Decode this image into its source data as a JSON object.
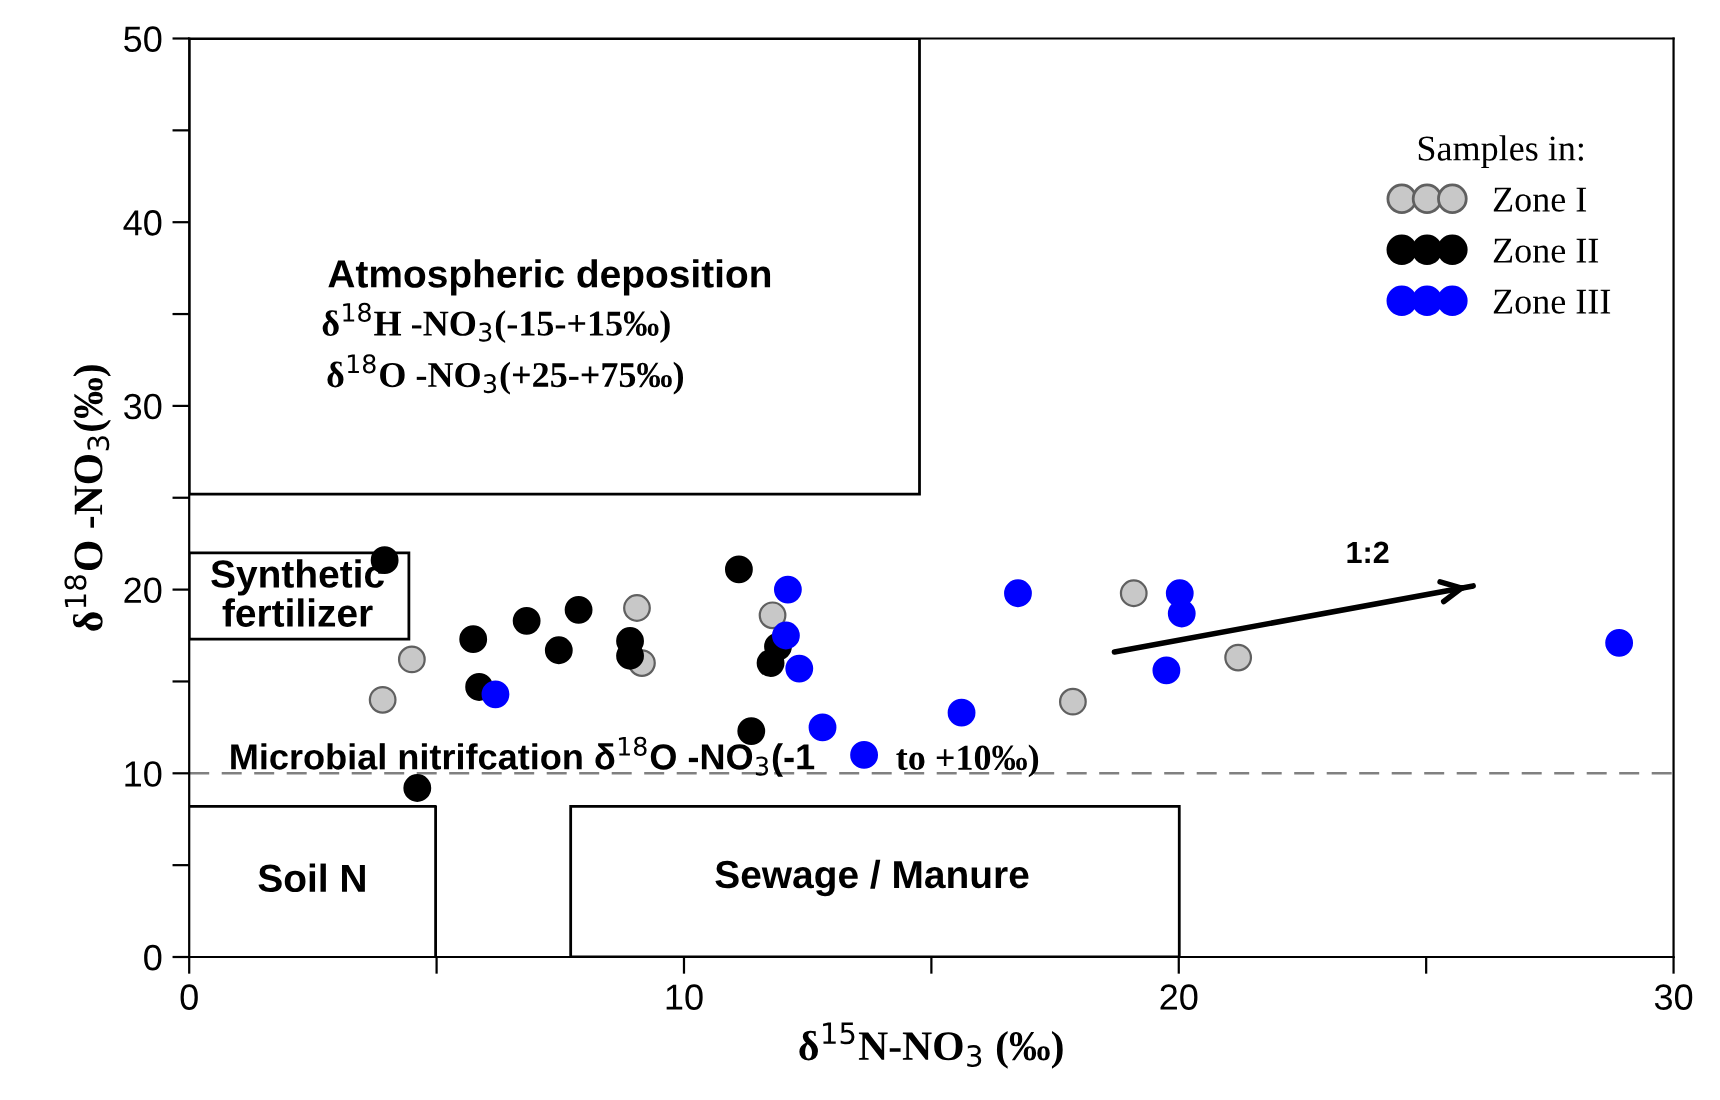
{
  "chart_data": {
    "type": "scatter",
    "xlabel": "δ$^{15}$N-NO$_{3}$ (‰)",
    "ylabel": "δ$^{18}$O -NO$_{3}$(‰)",
    "legend_title": "Samples in:",
    "legend": "top right",
    "marker": "circle",
    "xlim": [
      0,
      30
    ],
    "ylim": [
      0,
      50
    ],
    "xticks": [
      0,
      {
        "value": 5,
        "label": null
      },
      10,
      {
        "value": 15,
        "label": null
      },
      20,
      {
        "value": 25,
        "label": null
      },
      30
    ],
    "yticks": [
      0,
      {
        "value": 5,
        "label": null
      },
      10,
      {
        "value": 15,
        "label": null
      },
      20,
      {
        "value": 25,
        "label": null
      },
      30,
      {
        "value": 35,
        "label": null
      },
      40,
      {
        "value": 45,
        "label": null
      },
      50
    ],
    "series": [
      {
        "name": "Zone I",
        "color": "#c8c8c8",
        "x": [
          3.91,
          4.5,
          9.05,
          9.15,
          11.79,
          17.86,
          19.09,
          21.2
        ],
        "values": [
          14.0,
          16.2,
          19.0,
          16.0,
          18.6,
          13.9,
          19.8,
          16.3
        ]
      },
      {
        "name": "Zone II",
        "color": "#000000",
        "x": [
          3.95,
          5.74,
          5.86,
          6.82,
          7.87,
          7.47,
          8.91,
          8.91,
          11.11,
          11.36,
          4.61,
          11.9,
          11.75
        ],
        "values": [
          21.6,
          17.3,
          14.7,
          18.3,
          18.9,
          16.7,
          17.2,
          16.4,
          21.1,
          12.3,
          9.2,
          16.9,
          16.0
        ]
      },
      {
        "name": "Zone III",
        "color": "#0000ff",
        "x": [
          6.19,
          12.1,
          12.06,
          12.33,
          12.8,
          13.64,
          16.75,
          15.61,
          20.02,
          20.06,
          19.75,
          28.9
        ],
        "values": [
          14.3,
          20.0,
          17.5,
          15.7,
          12.5,
          11.0,
          19.8,
          13.3,
          19.8,
          18.7,
          15.6,
          17.1
        ]
      },
      {
        "type": "line",
        "marker": "none",
        "color": "#000000",
        "x": [
          18.7,
          25.95
        ],
        "values": [
          16.6,
          20.2
        ]
      }
    ],
    "ref_lines": [
      {
        "axis": "y",
        "value": 10,
        "label": "Microbial nitrifcation δ$^{18}$O -NO$_{3}$(-1",
        "line_style": "dashed",
        "color": "#808080"
      }
    ],
    "annotations": [
      "Atmospheric deposition",
      "δ$^{18}$H -NO$_{3}$(-15-+15‰)",
      "δ$^{18}$O -NO$_{3}$(+25-+75‰)",
      "Synthetic\nfertilizer",
      "Soil N",
      "Sewage / Manure",
      "to +10‰)",
      {
        "text": "1:2",
        "x": 25.95,
        "y": 20.2
      }
    ]
  }
}
